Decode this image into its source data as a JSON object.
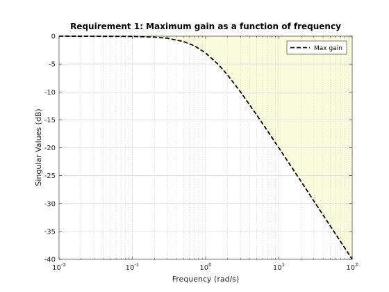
{
  "chart_data": {
    "type": "line",
    "title": "Requirement 1: Maximum gain as a function of frequency",
    "xlabel": "Frequency (rad/s)",
    "ylabel": "Singular Values (dB)",
    "xscale": "log",
    "xlim": [
      0.01,
      100
    ],
    "ylim": [
      -40,
      0
    ],
    "xticks": [
      {
        "value": 0.01,
        "base": "10",
        "exp": "-2"
      },
      {
        "value": 0.1,
        "base": "10",
        "exp": "-1"
      },
      {
        "value": 1,
        "base": "10",
        "exp": "0"
      },
      {
        "value": 10,
        "base": "10",
        "exp": "1"
      },
      {
        "value": 100,
        "base": "10",
        "exp": "2"
      }
    ],
    "yticks": [
      {
        "value": 0,
        "label": "0"
      },
      {
        "value": -5,
        "label": "-5"
      },
      {
        "value": -10,
        "label": "-10"
      },
      {
        "value": -15,
        "label": "-15"
      },
      {
        "value": -20,
        "label": "-20"
      },
      {
        "value": -25,
        "label": "-25"
      },
      {
        "value": -30,
        "label": "-30"
      },
      {
        "value": -35,
        "label": "-35"
      },
      {
        "value": -40,
        "label": "-40"
      }
    ],
    "grid": true,
    "minor_grid": true,
    "legend_position": "top-right",
    "shaded_region": {
      "description": "violation region above max gain",
      "color": "#fafadc",
      "edge_color": "#e2e2b4"
    },
    "series": [
      {
        "name": "Max gain",
        "style": "dashed",
        "color": "#000000",
        "points": [
          [
            0.01,
            0
          ],
          [
            0.1,
            -0.04
          ],
          [
            0.2,
            -0.17
          ],
          [
            0.3,
            -0.37
          ],
          [
            0.5,
            -0.97
          ],
          [
            0.7,
            -1.72
          ],
          [
            1,
            -3.01
          ],
          [
            1.5,
            -5.12
          ],
          [
            2,
            -6.99
          ],
          [
            3,
            -10.0
          ],
          [
            5,
            -14.15
          ],
          [
            7,
            -17.0
          ],
          [
            10,
            -20.04
          ],
          [
            20,
            -26.02
          ],
          [
            30,
            -29.54
          ],
          [
            50,
            -33.98
          ],
          [
            70,
            -36.9
          ],
          [
            100,
            -40.0
          ]
        ]
      }
    ]
  }
}
